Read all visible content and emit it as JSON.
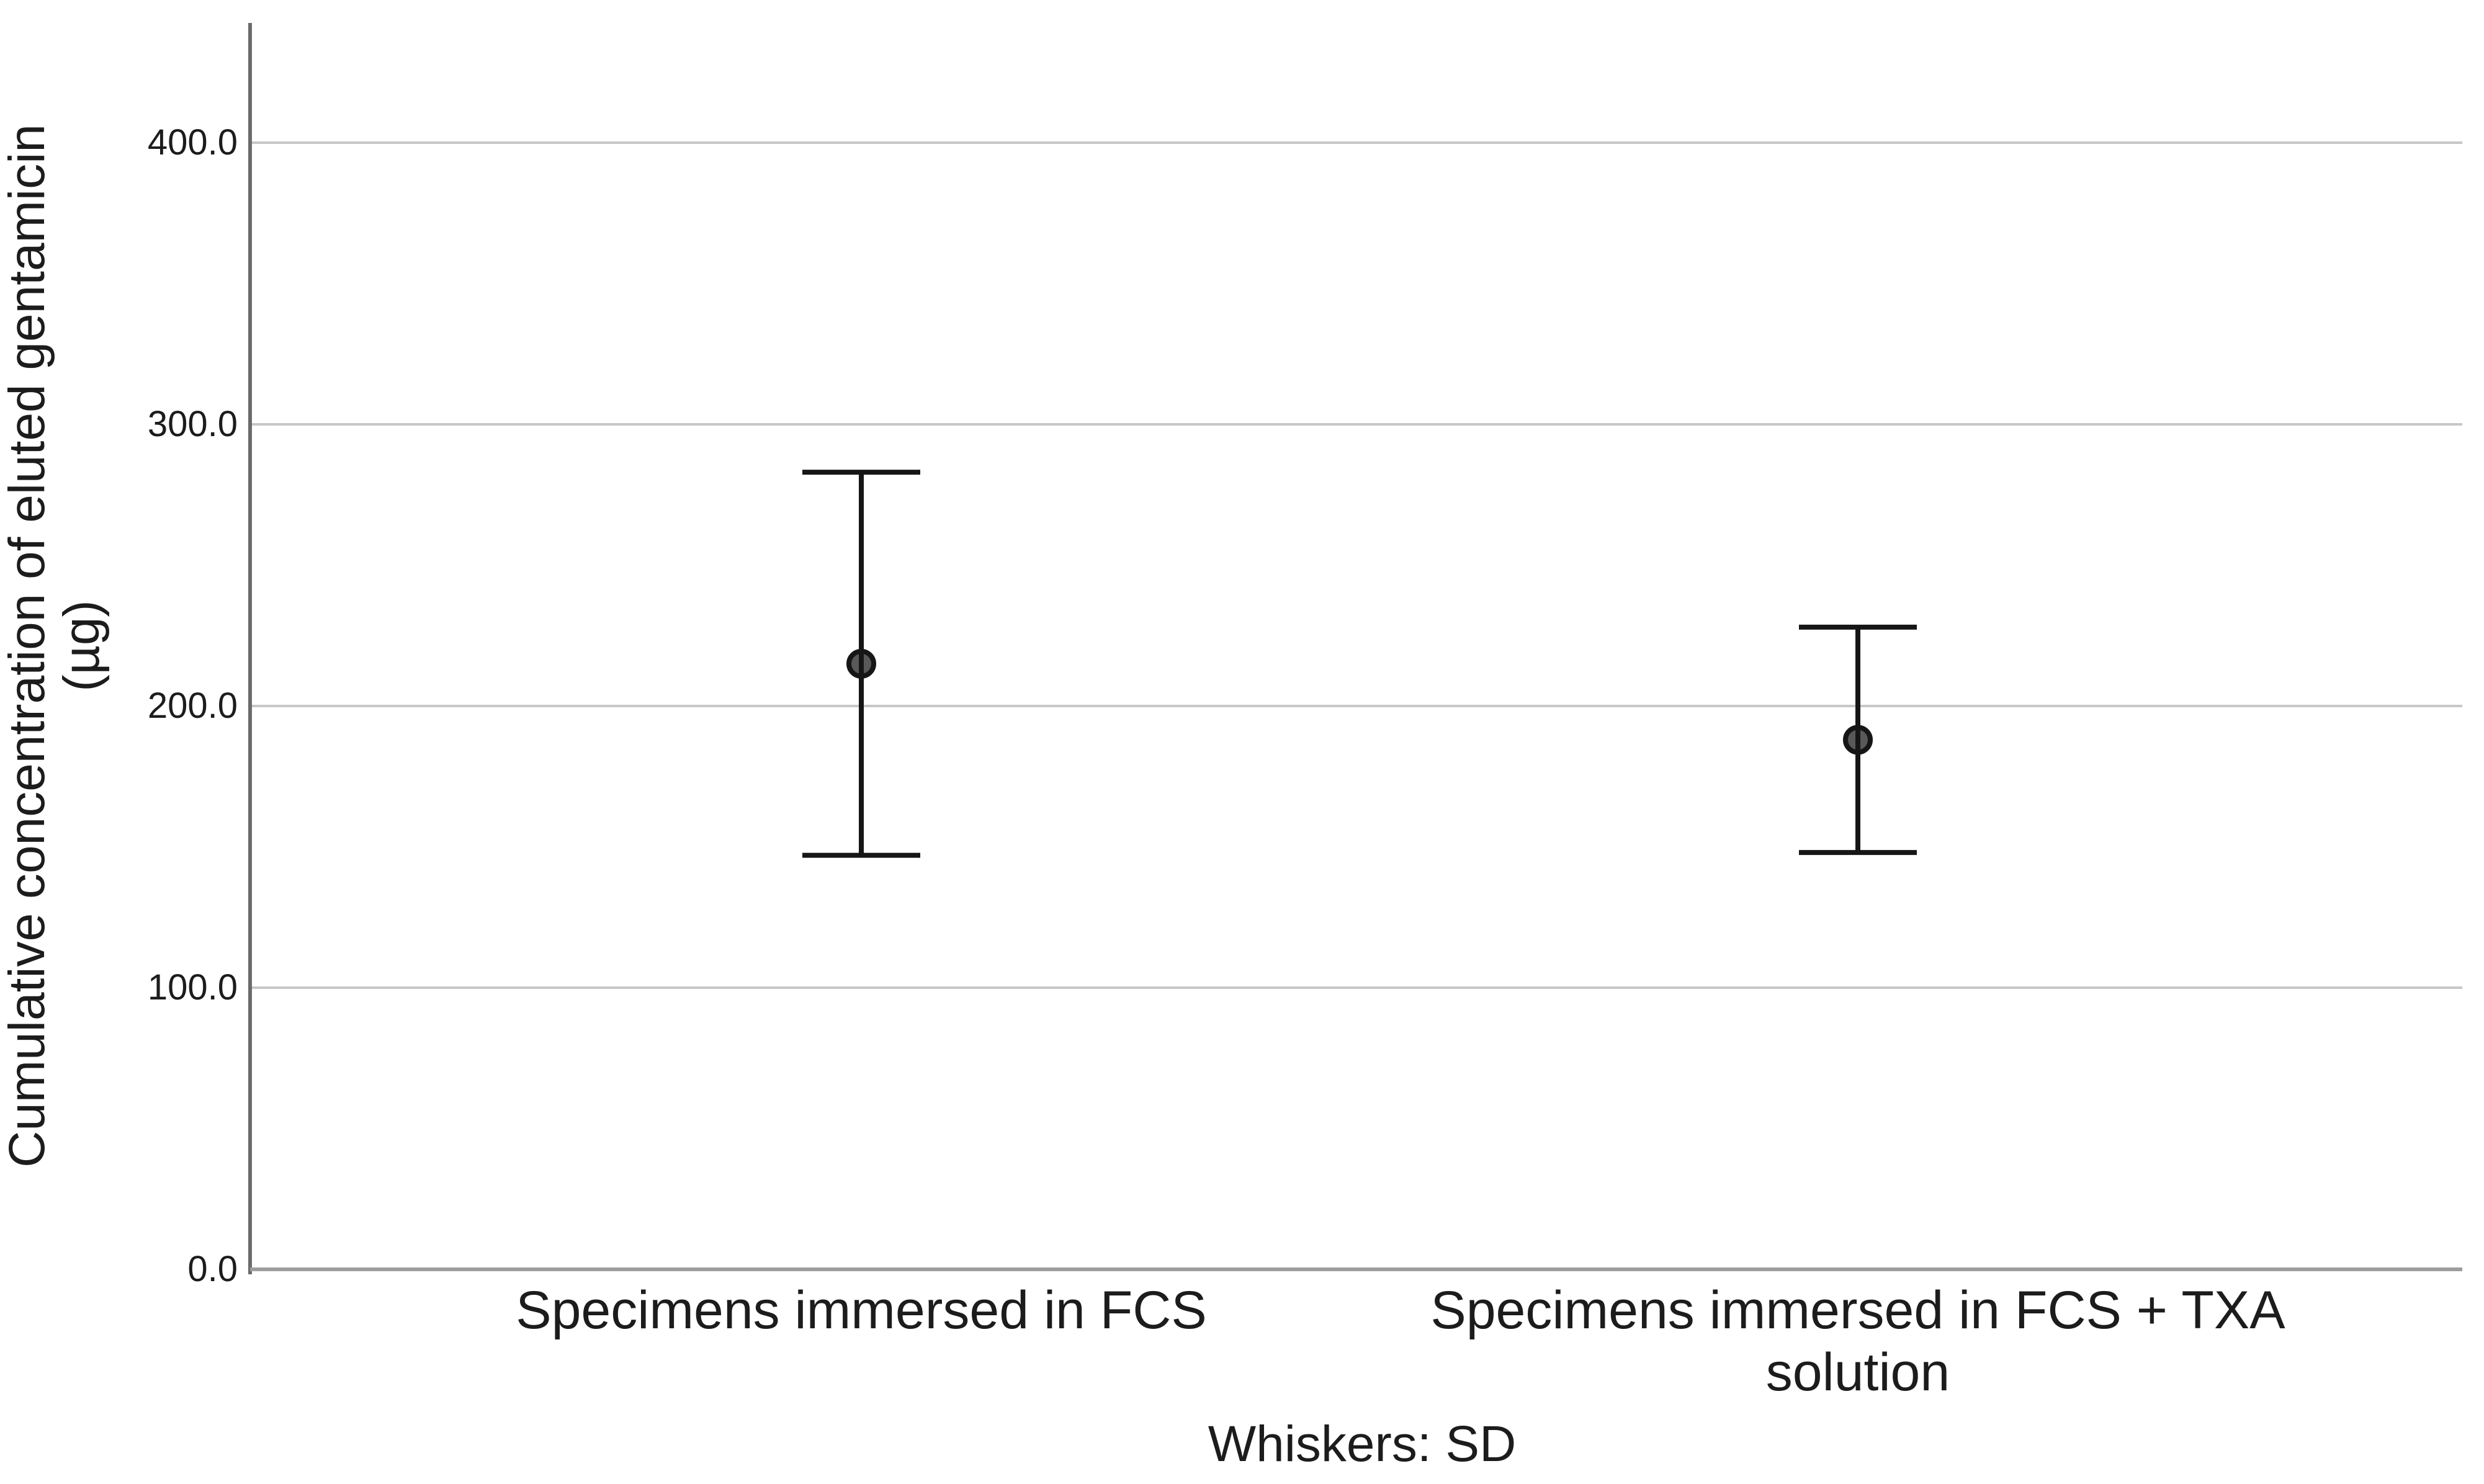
{
  "chart_data": {
    "type": "errorbar",
    "title": "",
    "categories": [
      "Specimens immersed in FCS",
      "Specimens immersed in FCS + TXA solution"
    ],
    "points": [
      {
        "category": "Specimens immersed in FCS",
        "mean": 215,
        "upper_whisker": 283,
        "lower_whisker": 147
      },
      {
        "category": "Specimens immersed in FCS + TXA solution",
        "mean": 188,
        "upper_whisker": 228,
        "lower_whisker": 148
      }
    ],
    "whisker_definition": "SD",
    "footnote": "Whiskers: SD",
    "xlabel": "",
    "ylabel": "Cumulative concentration of eluted gentamicin (µg)",
    "ylabel_line1": "Cumulative concentration of eluted gentamicin",
    "ylabel_line2": "(µg)",
    "yticks": [
      {
        "value": 0,
        "label": "0.0"
      },
      {
        "value": 100,
        "label": "100.0"
      },
      {
        "value": 200,
        "label": "200.0"
      },
      {
        "value": 300,
        "label": "300.0"
      },
      {
        "value": 400,
        "label": "400.0"
      }
    ],
    "ylim": [
      0,
      442
    ],
    "grid": "horizontal",
    "legend": "none",
    "colors": {
      "text": "#1c1c1c",
      "axis": "#6b6b6b",
      "baseline": "#9d9d9d",
      "gridline": "#c7c7c7",
      "errorbar": "#161616",
      "marker_fill": "#595959",
      "background": "#ffffff"
    }
  }
}
